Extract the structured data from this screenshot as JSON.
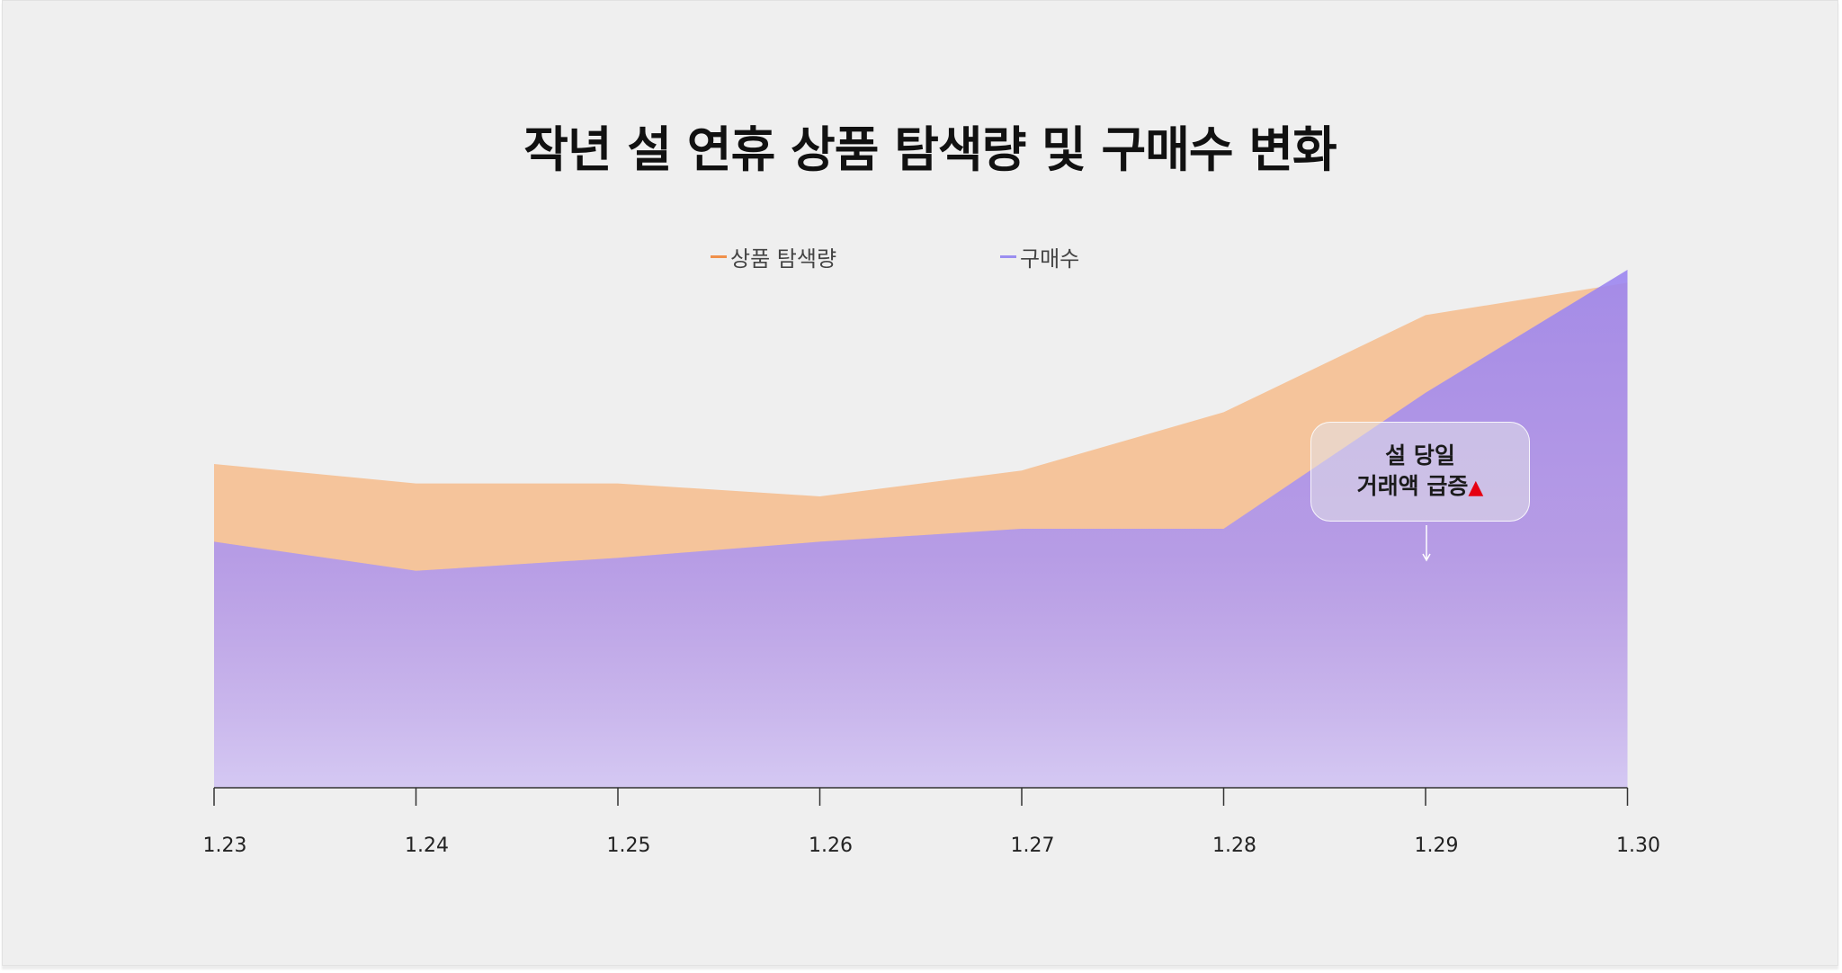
{
  "chart_data": {
    "type": "area",
    "title": "작년 설 연휴 상품 탐색량 및 구매수 변화",
    "categories": [
      "1.23",
      "1.24",
      "1.25",
      "1.26",
      "1.27",
      "1.28",
      "1.29",
      "1.30"
    ],
    "series": [
      {
        "name": "상품 탐색량",
        "color": "#f5c49b",
        "legend_color": "#f0904a",
        "values": [
          50,
          47,
          47,
          45,
          49,
          58,
          73,
          78
        ]
      },
      {
        "name": "구매수",
        "color": "#9b85f0",
        "legend_color": "#9b8ef0",
        "values": [
          38,
          33.5,
          35.5,
          38,
          40,
          40,
          61,
          80
        ]
      }
    ],
    "ylim": [
      0,
      80
    ],
    "xlabel": "",
    "ylabel": "",
    "grid": false,
    "legend_position": "top-center",
    "annotation": {
      "line1": "설 당일",
      "line2": "거래액 급증",
      "marker": "▲",
      "marker_color": "#e60012",
      "target_category": "1.29"
    }
  }
}
